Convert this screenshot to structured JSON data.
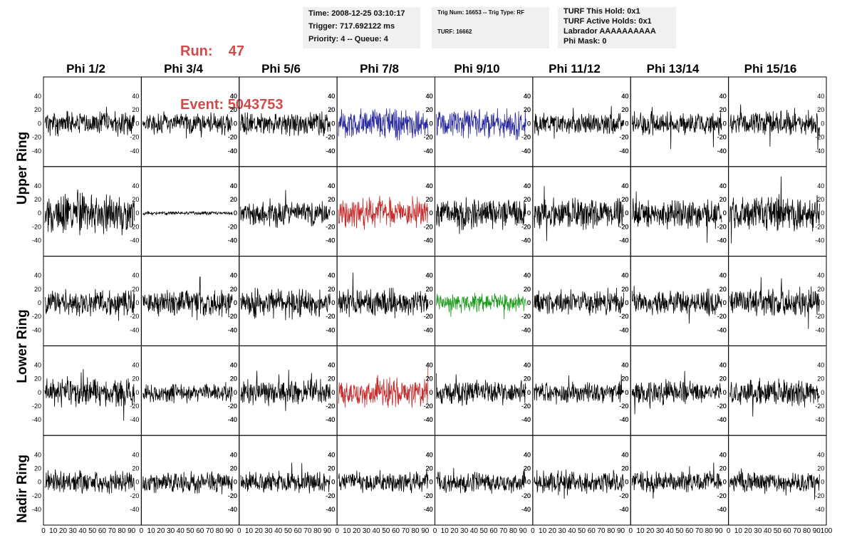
{
  "header": {
    "run_label": "Run:",
    "run_value": "47",
    "event_label": "Event:",
    "event_value": "5043753"
  },
  "info_box_1": {
    "time": "Time: 2008-12-25 03:10:17",
    "trigger": "Trigger: 717.692122 ms",
    "priority": "Priority: 4 -- Queue: 4"
  },
  "info_box_2": {
    "trig": "Trig Num: 16653 -- Trig Type: RF",
    "turf": "TURF: 16662"
  },
  "info_box_3": {
    "hold": "TURF This Hold: 0x1",
    "active": "TURF Active Holds: 0x1",
    "labrador": "Labrador AAAAAAAAAA",
    "phimask": "Phi Mask: 0"
  },
  "phi_labels": [
    "Phi 1/2",
    "Phi 3/4",
    "Phi 5/6",
    "Phi 7/8",
    "Phi 9/10",
    "Phi 11/12",
    "Phi 13/14",
    "Phi 15/16"
  ],
  "ring_labels": [
    "Upper Ring",
    "Lower Ring",
    "Nadir Ring"
  ],
  "chart_data": {
    "type": "line",
    "description_axes": {
      "x_ticks": [
        0,
        10,
        20,
        30,
        40,
        50,
        60,
        70,
        80,
        90,
        100
      ],
      "x_last_panel_extra": "100",
      "y_ticks": [
        -40,
        -20,
        0,
        20,
        40
      ],
      "xlim": [
        0,
        100
      ],
      "ylim": [
        -55,
        50
      ]
    },
    "rows": 5,
    "cols": 8,
    "colors": {
      "default": "#000000",
      "blue": "#2a2aa0",
      "red": "#c42a2a",
      "green": "#1e9a1e"
    },
    "panels": [
      {
        "row": 0,
        "col": 0,
        "color": "default",
        "amp": 14,
        "seed": 1
      },
      {
        "row": 0,
        "col": 1,
        "color": "default",
        "amp": 13,
        "seed": 2
      },
      {
        "row": 0,
        "col": 2,
        "color": "default",
        "amp": 13,
        "seed": 3
      },
      {
        "row": 0,
        "col": 3,
        "color": "blue",
        "amp": 17,
        "seed": 4
      },
      {
        "row": 0,
        "col": 4,
        "color": "blue",
        "amp": 17,
        "seed": 5
      },
      {
        "row": 0,
        "col": 5,
        "color": "default",
        "amp": 12,
        "seed": 6
      },
      {
        "row": 0,
        "col": 6,
        "color": "default",
        "amp": 14,
        "seed": 7
      },
      {
        "row": 0,
        "col": 7,
        "color": "default",
        "amp": 14,
        "seed": 8
      },
      {
        "row": 1,
        "col": 0,
        "color": "default",
        "amp": 22,
        "seed": 9
      },
      {
        "row": 1,
        "col": 1,
        "color": "default",
        "amp": 2,
        "seed": 10
      },
      {
        "row": 1,
        "col": 2,
        "color": "default",
        "amp": 15,
        "seed": 11
      },
      {
        "row": 1,
        "col": 3,
        "color": "red",
        "amp": 18,
        "seed": 12
      },
      {
        "row": 1,
        "col": 4,
        "color": "default",
        "amp": 17,
        "seed": 13
      },
      {
        "row": 1,
        "col": 5,
        "color": "default",
        "amp": 17,
        "seed": 14
      },
      {
        "row": 1,
        "col": 6,
        "color": "default",
        "amp": 17,
        "seed": 15
      },
      {
        "row": 1,
        "col": 7,
        "color": "default",
        "amp": 20,
        "seed": 16
      },
      {
        "row": 2,
        "col": 0,
        "color": "default",
        "amp": 15,
        "seed": 17
      },
      {
        "row": 2,
        "col": 1,
        "color": "default",
        "amp": 15,
        "seed": 18
      },
      {
        "row": 2,
        "col": 2,
        "color": "default",
        "amp": 16,
        "seed": 19
      },
      {
        "row": 2,
        "col": 3,
        "color": "default",
        "amp": 16,
        "seed": 20
      },
      {
        "row": 2,
        "col": 4,
        "color": "green",
        "amp": 11,
        "seed": 21
      },
      {
        "row": 2,
        "col": 5,
        "color": "default",
        "amp": 15,
        "seed": 22
      },
      {
        "row": 2,
        "col": 6,
        "color": "default",
        "amp": 15,
        "seed": 23
      },
      {
        "row": 2,
        "col": 7,
        "color": "default",
        "amp": 16,
        "seed": 24
      },
      {
        "row": 3,
        "col": 0,
        "color": "default",
        "amp": 16,
        "seed": 25
      },
      {
        "row": 3,
        "col": 1,
        "color": "default",
        "amp": 11,
        "seed": 26
      },
      {
        "row": 3,
        "col": 2,
        "color": "default",
        "amp": 14,
        "seed": 27
      },
      {
        "row": 3,
        "col": 3,
        "color": "red",
        "amp": 16,
        "seed": 28
      },
      {
        "row": 3,
        "col": 4,
        "color": "default",
        "amp": 14,
        "seed": 29
      },
      {
        "row": 3,
        "col": 5,
        "color": "default",
        "amp": 13,
        "seed": 30
      },
      {
        "row": 3,
        "col": 6,
        "color": "default",
        "amp": 13,
        "seed": 31
      },
      {
        "row": 3,
        "col": 7,
        "color": "default",
        "amp": 15,
        "seed": 32
      },
      {
        "row": 4,
        "col": 0,
        "color": "default",
        "amp": 13,
        "seed": 33
      },
      {
        "row": 4,
        "col": 1,
        "color": "default",
        "amp": 12,
        "seed": 34
      },
      {
        "row": 4,
        "col": 2,
        "color": "default",
        "amp": 12,
        "seed": 35
      },
      {
        "row": 4,
        "col": 3,
        "color": "default",
        "amp": 12,
        "seed": 36
      },
      {
        "row": 4,
        "col": 4,
        "color": "default",
        "amp": 12,
        "seed": 37
      },
      {
        "row": 4,
        "col": 5,
        "color": "default",
        "amp": 14,
        "seed": 38
      },
      {
        "row": 4,
        "col": 6,
        "color": "default",
        "amp": 12,
        "seed": 39
      },
      {
        "row": 4,
        "col": 7,
        "color": "default",
        "amp": 12,
        "seed": 40
      }
    ]
  }
}
